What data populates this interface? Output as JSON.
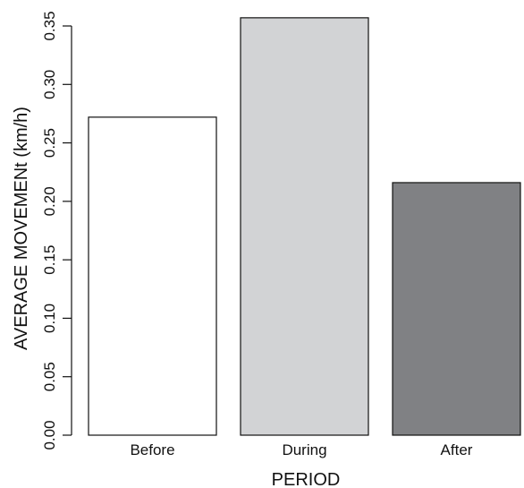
{
  "chart_data": {
    "type": "bar",
    "categories": [
      "Before",
      "During",
      "After"
    ],
    "values": [
      0.272,
      0.357,
      0.216
    ],
    "colors": [
      "#ffffff",
      "#d2d3d5",
      "#808184"
    ],
    "title": "",
    "xlabel": "PERIOD",
    "ylabel": "AVERAGE MOVEMENt (km/h)",
    "ylim": [
      0,
      0.35
    ],
    "yticks": [
      "0.00",
      "0.05",
      "0.10",
      "0.15",
      "0.20",
      "0.25",
      "0.30",
      "0.35"
    ],
    "grid": false,
    "legend": "none"
  }
}
